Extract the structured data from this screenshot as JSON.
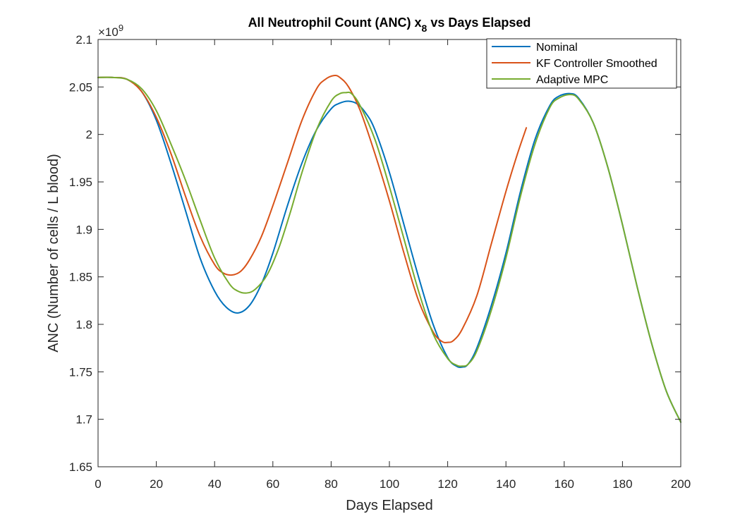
{
  "chart_data": {
    "type": "line",
    "title_prefix": "All Neutrophil Count (ANC) x",
    "title_subscript": "8",
    "title_suffix": " vs Days Elapsed",
    "xlabel": "Days Elapsed",
    "ylabel": "ANC (Number of cells / L blood)",
    "exponent_base": "×10",
    "exponent_power": "9",
    "xlim": [
      0,
      200
    ],
    "ylim": [
      1.65,
      2.1
    ],
    "xticks": [
      0,
      20,
      40,
      60,
      80,
      100,
      120,
      140,
      160,
      180,
      200
    ],
    "xtick_labels": [
      "0",
      "20",
      "40",
      "60",
      "80",
      "100",
      "120",
      "140",
      "160",
      "180",
      "200"
    ],
    "yticks": [
      1.65,
      1.7,
      1.75,
      1.8,
      1.85,
      1.9,
      1.95,
      2.0,
      2.05,
      2.1
    ],
    "ytick_labels": [
      "1.65",
      "1.7",
      "1.75",
      "1.8",
      "1.85",
      "1.9",
      "1.95",
      "2",
      "2.05",
      "2.1"
    ],
    "grid": false,
    "legend_position": "top-right",
    "series": [
      {
        "name": "Nominal",
        "color": "#0072BD",
        "x": [
          0,
          5,
          10,
          15,
          20,
          25,
          30,
          35,
          40,
          44,
          48,
          52,
          56,
          60,
          65,
          70,
          75,
          80,
          83,
          86,
          89,
          92,
          95,
          100,
          105,
          110,
          115,
          120,
          123,
          125,
          127,
          130,
          135,
          140,
          145,
          150,
          155,
          158,
          162,
          165,
          170,
          175,
          180,
          185,
          190,
          195,
          200
        ],
        "y": [
          2.06,
          2.06,
          2.058,
          2.045,
          2.015,
          1.97,
          1.92,
          1.87,
          1.835,
          1.818,
          1.812,
          1.82,
          1.842,
          1.875,
          1.925,
          1.97,
          2.005,
          2.027,
          2.033,
          2.035,
          2.032,
          2.022,
          2.005,
          1.96,
          1.905,
          1.85,
          1.8,
          1.765,
          1.756,
          1.755,
          1.758,
          1.775,
          1.82,
          1.875,
          1.94,
          1.995,
          2.03,
          2.04,
          2.043,
          2.038,
          2.012,
          1.965,
          1.905,
          1.84,
          1.78,
          1.73,
          1.697
        ]
      },
      {
        "name": "KF Controller Smoothed",
        "color": "#D95319",
        "x": [
          0,
          5,
          10,
          15,
          20,
          25,
          30,
          35,
          40,
          43,
          46,
          49,
          52,
          56,
          60,
          65,
          70,
          75,
          78,
          81,
          83,
          86,
          90,
          95,
          100,
          105,
          110,
          115,
          118,
          120,
          122,
          125,
          130,
          135,
          140,
          144,
          147
        ],
        "y": [
          2.06,
          2.06,
          2.058,
          2.045,
          2.018,
          1.98,
          1.935,
          1.893,
          1.863,
          1.854,
          1.852,
          1.856,
          1.868,
          1.892,
          1.925,
          1.97,
          2.015,
          2.048,
          2.058,
          2.062,
          2.06,
          2.05,
          2.025,
          1.98,
          1.93,
          1.875,
          1.825,
          1.792,
          1.782,
          1.781,
          1.783,
          1.795,
          1.83,
          1.885,
          1.94,
          1.98,
          2.007
        ]
      },
      {
        "name": "Adaptive MPC",
        "color": "#77AC30",
        "x": [
          0,
          5,
          10,
          15,
          20,
          25,
          30,
          35,
          40,
          45,
          48,
          51,
          54,
          58,
          62,
          66,
          70,
          75,
          80,
          83,
          85,
          87,
          90,
          95,
          100,
          105,
          110,
          115,
          120,
          123,
          125,
          127,
          130,
          135,
          140,
          145,
          150,
          155,
          158,
          162,
          165,
          170,
          175,
          180,
          185,
          190,
          195,
          200
        ],
        "y": [
          2.06,
          2.06,
          2.058,
          2.048,
          2.025,
          1.99,
          1.952,
          1.91,
          1.87,
          1.843,
          1.835,
          1.833,
          1.837,
          1.852,
          1.88,
          1.918,
          1.96,
          2.005,
          2.035,
          2.043,
          2.044,
          2.043,
          2.03,
          1.995,
          1.945,
          1.89,
          1.835,
          1.79,
          1.764,
          1.757,
          1.756,
          1.758,
          1.772,
          1.815,
          1.87,
          1.935,
          1.99,
          2.028,
          2.038,
          2.042,
          2.037,
          2.012,
          1.965,
          1.905,
          1.84,
          1.78,
          1.73,
          1.697
        ]
      }
    ]
  }
}
